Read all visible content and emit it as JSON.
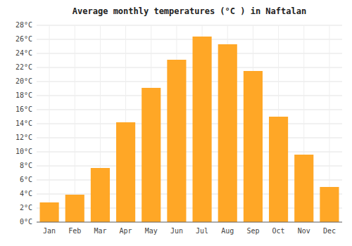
{
  "chart_data": {
    "type": "bar",
    "title": "Average monthly temperatures (°C ) in Naftalan",
    "categories": [
      "Jan",
      "Feb",
      "Mar",
      "Apr",
      "May",
      "Jun",
      "Jul",
      "Aug",
      "Sep",
      "Oct",
      "Nov",
      "Dec"
    ],
    "values": [
      2.8,
      3.9,
      7.7,
      14.2,
      19.1,
      23.1,
      26.4,
      25.3,
      21.5,
      15.0,
      9.6,
      5.0
    ],
    "color": "#FFA726",
    "ylim": [
      0,
      28
    ],
    "yticks": [
      {
        "value": 0,
        "label": "0°C"
      },
      {
        "value": 2,
        "label": "2°C"
      },
      {
        "value": 4,
        "label": "4°C"
      },
      {
        "value": 6,
        "label": "6°C"
      },
      {
        "value": 8,
        "label": "8°C"
      },
      {
        "value": 10,
        "label": "10°C"
      },
      {
        "value": 12,
        "label": "12°C"
      },
      {
        "value": 14,
        "label": "14°C"
      },
      {
        "value": 16,
        "label": "16°C"
      },
      {
        "value": 18,
        "label": "18°C"
      },
      {
        "value": 20,
        "label": "20°C"
      },
      {
        "value": 22,
        "label": "22°C"
      },
      {
        "value": 24,
        "label": "24°C"
      },
      {
        "value": 26,
        "label": "26°C"
      },
      {
        "value": 28,
        "label": "28°C"
      }
    ],
    "grid": true
  }
}
